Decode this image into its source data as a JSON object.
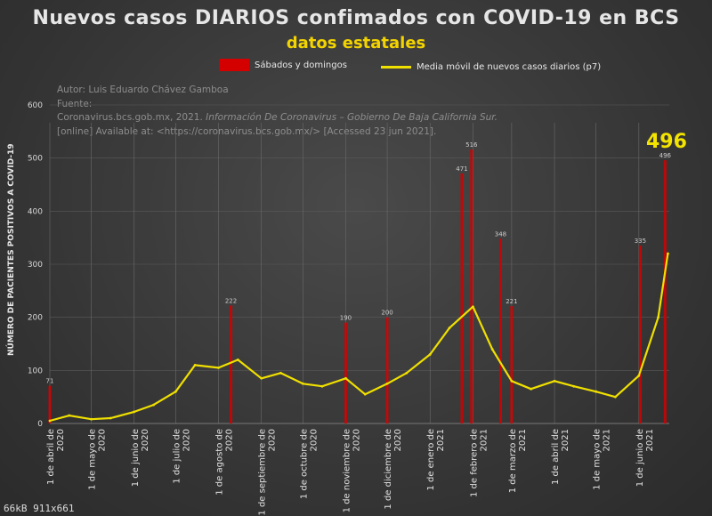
{
  "chart_data": {
    "type": "bar",
    "title": "Nuevos casos DIARIOS confimados con COVID-19 en BCS",
    "subtitle": "datos estatales",
    "ylabel": "NÚMERO DE PACIENTES POSITIVOS A COVID-19",
    "ylim": [
      0,
      600
    ],
    "yticks": [
      "0",
      "100",
      "200",
      "300",
      "400",
      "500",
      "600"
    ],
    "xticks": [
      "1 de abril de 2020",
      "1 de mayo de 2020",
      "1 de junio de 2020",
      "1 de julio de 2020",
      "1 de agosto de 2020",
      "1 de septiembre de 2020",
      "1 de octubre de 2020",
      "1 de noviembre de 2020",
      "1 de diciembre de 2020",
      "1 de enero de 2021",
      "1 de febrero de 2021",
      "1 de marzo de 2021",
      "1 de abril de 2021",
      "1 de mayo de 2021",
      "1 de junio de 2021"
    ],
    "legend": {
      "position": "top",
      "weekend_label": "Sábados y domingos",
      "avg_label": "Media móvil de  nuevos casos diarios (p7)"
    },
    "weekend_color": "#d40000",
    "avg_color": "#f0e000",
    "grid": true,
    "annotation": "496",
    "series": [
      {
        "name": "Media móvil de  nuevos casos diarios (p7)",
        "type": "line",
        "x": [
          "2020-04-01",
          "2020-04-15",
          "2020-05-01",
          "2020-05-15",
          "2020-06-01",
          "2020-06-15",
          "2020-07-01",
          "2020-07-15",
          "2020-08-01",
          "2020-08-15",
          "2020-09-01",
          "2020-09-15",
          "2020-10-01",
          "2020-10-15",
          "2020-11-01",
          "2020-11-15",
          "2020-12-01",
          "2020-12-15",
          "2021-01-01",
          "2021-01-15",
          "2021-02-01",
          "2021-02-15",
          "2021-03-01",
          "2021-03-15",
          "2021-04-01",
          "2021-04-15",
          "2021-05-01",
          "2021-05-15",
          "2021-06-01",
          "2021-06-15",
          "2021-06-22"
        ],
        "values": [
          5,
          15,
          8,
          10,
          22,
          35,
          60,
          110,
          105,
          120,
          85,
          95,
          75,
          70,
          85,
          55,
          75,
          95,
          130,
          180,
          220,
          140,
          80,
          65,
          80,
          70,
          60,
          50,
          90,
          200,
          320
        ]
      }
    ],
    "bar_labels": [
      {
        "x": "2020-04-01",
        "value": 71
      },
      {
        "x": "2020-08-10",
        "value": 222
      },
      {
        "x": "2020-11-01",
        "value": 190
      },
      {
        "x": "2020-12-01",
        "value": 200
      },
      {
        "x": "2021-01-24",
        "value": 471
      },
      {
        "x": "2021-01-31",
        "value": 516
      },
      {
        "x": "2021-02-21",
        "value": 348
      },
      {
        "x": "2021-03-01",
        "value": 221
      },
      {
        "x": "2021-06-02",
        "value": 335
      },
      {
        "x": "2021-06-20",
        "value": 496
      }
    ]
  },
  "credit": {
    "line1": "Autor: Luis Eduardo Chávez Gamboa",
    "line2": "Fuente:",
    "line3_prefix": "Coronavirus.bcs.gob.mx, 2021. ",
    "line3_italic": "Información De Coronavirus – Gobierno De Baja California Sur.",
    "line4": "[online] Available at: <https://coronavirus.bcs.gob.mx/> [Accessed 23 jun 2021]."
  },
  "watermark": "66kB 911x661"
}
